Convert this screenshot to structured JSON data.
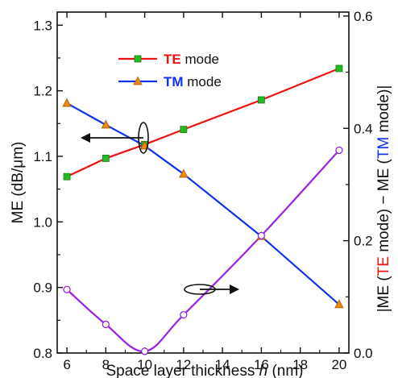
{
  "chart_data": {
    "type": "line",
    "x": [
      6,
      8,
      10,
      12,
      16,
      20
    ],
    "xlabel_prefix": "Space layer thickness ",
    "xlabel_var": "h",
    "xlabel_suffix": " (nm)",
    "xlim": [
      5.5,
      20.5
    ],
    "xticks": [
      6,
      8,
      10,
      12,
      14,
      16,
      18,
      20
    ],
    "ylabel_left": "ME (dB/μm)",
    "ylim_left": [
      0.8,
      1.32
    ],
    "yticks_left": [
      "0.8",
      "0.9",
      "1.0",
      "1.1",
      "1.2",
      "1.3"
    ],
    "ylabel_right_parts": [
      "|ME (",
      "TE",
      " mode) − ME (",
      "TM",
      " mode)|"
    ],
    "ylim_right": [
      0.0,
      0.607
    ],
    "yticks_right": [
      "0.0",
      "0.2",
      "0.4",
      "0.6"
    ],
    "series": [
      {
        "name": "TE mode",
        "axis": "left",
        "color": "#ee1111",
        "marker": "square",
        "marker_color": "#22bb22",
        "values": [
          1.069,
          1.097,
          1.118,
          1.141,
          1.186,
          1.234
        ]
      },
      {
        "name": "TM mode",
        "axis": "left",
        "color": "#1133ee",
        "marker": "triangle",
        "marker_color": "#ee8811",
        "values": [
          1.181,
          1.148,
          1.116,
          1.073,
          0.978,
          0.874
        ]
      },
      {
        "name": "",
        "axis": "right",
        "color": "#9922dd",
        "marker": "circle",
        "marker_color": "#ffffff",
        "values": [
          0.113,
          0.051,
          0.003,
          0.068,
          0.209,
          0.361
        ]
      }
    ],
    "legend": {
      "position": "top-center",
      "entries": [
        {
          "label_colored": "TE",
          "label_rest": " mode",
          "color": "#ee1111",
          "marker_color": "#22bb22",
          "marker": "square"
        },
        {
          "label_colored": "TM",
          "label_rest": " mode",
          "color": "#1133ee",
          "marker_color": "#ee8811",
          "marker": "triangle"
        }
      ]
    },
    "annotations": [
      {
        "type": "arrow-left",
        "meaning": "TE/TM curves refer to left axis"
      },
      {
        "type": "arrow-right",
        "meaning": "purple curve refers to right axis"
      }
    ],
    "grid": false
  }
}
